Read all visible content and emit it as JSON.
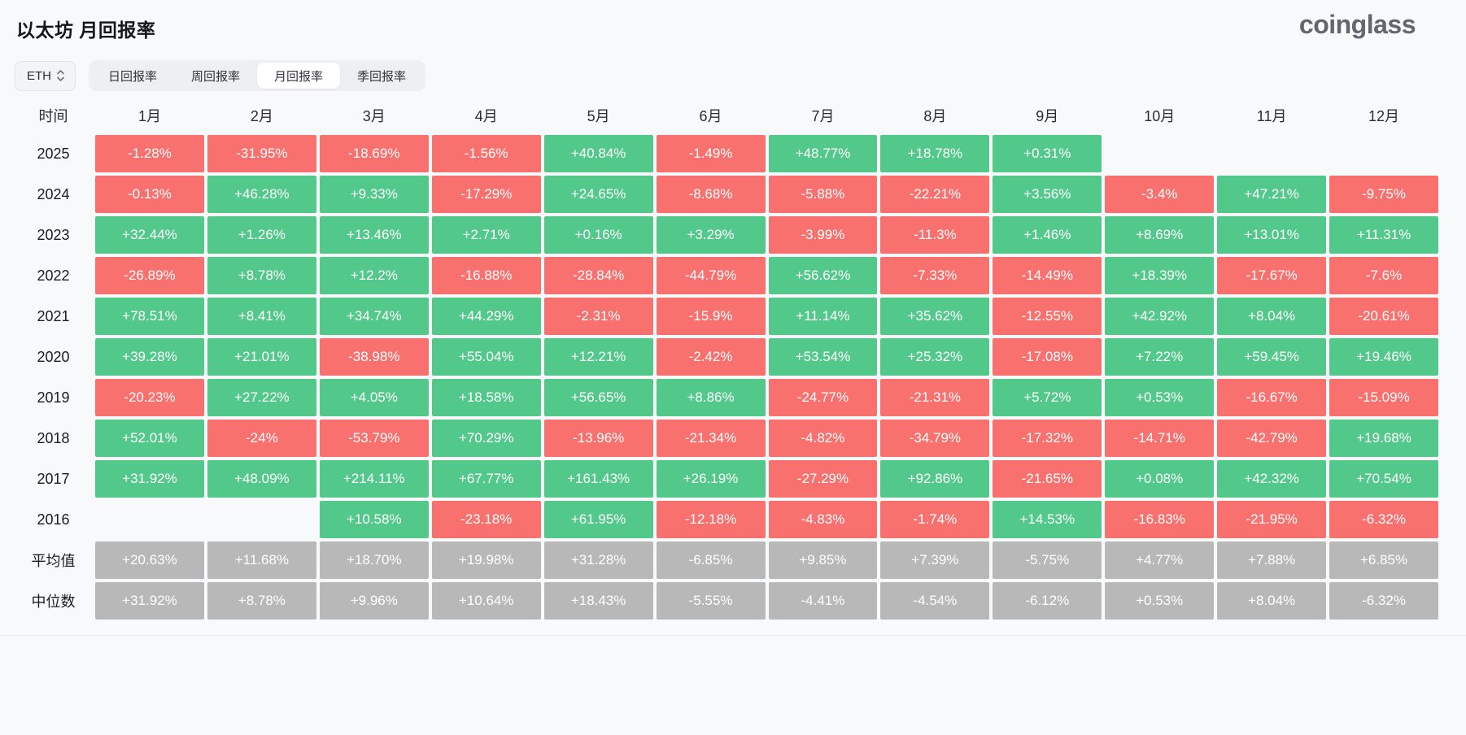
{
  "header": {
    "title": "以太坊 月回报率",
    "logo": "coinglass"
  },
  "controls": {
    "coin_select": {
      "value": "ETH"
    },
    "tabs": [
      {
        "name": "tab-daily-returns",
        "label": "日回报率",
        "active": false
      },
      {
        "name": "tab-weekly-returns",
        "label": "周回报率",
        "active": false
      },
      {
        "name": "tab-monthly-returns",
        "label": "月回报率",
        "active": true
      },
      {
        "name": "tab-quarterly-returns",
        "label": "季回报率",
        "active": false
      }
    ]
  },
  "colors": {
    "positive": "#52c98b",
    "negative": "#f8716e",
    "neutral": "#b8b8b8"
  },
  "chart_data": {
    "type": "heatmap",
    "title": "以太坊 月回报率",
    "unit": "%",
    "columns": [
      "时间",
      "1月",
      "2月",
      "3月",
      "4月",
      "5月",
      "6月",
      "7月",
      "8月",
      "9月",
      "10月",
      "11月",
      "12月"
    ],
    "rows": [
      {
        "label": "2025",
        "values": [
          "-1.28%",
          "-31.95%",
          "-18.69%",
          "-1.56%",
          "+40.84%",
          "-1.49%",
          "+48.77%",
          "+18.78%",
          "+0.31%",
          "",
          "",
          ""
        ]
      },
      {
        "label": "2024",
        "values": [
          "-0.13%",
          "+46.28%",
          "+9.33%",
          "-17.29%",
          "+24.65%",
          "-8.68%",
          "-5.88%",
          "-22.21%",
          "+3.56%",
          "-3.4%",
          "+47.21%",
          "-9.75%"
        ]
      },
      {
        "label": "2023",
        "values": [
          "+32.44%",
          "+1.26%",
          "+13.46%",
          "+2.71%",
          "+0.16%",
          "+3.29%",
          "-3.99%",
          "-11.3%",
          "+1.46%",
          "+8.69%",
          "+13.01%",
          "+11.31%"
        ]
      },
      {
        "label": "2022",
        "values": [
          "-26.89%",
          "+8.78%",
          "+12.2%",
          "-16.88%",
          "-28.84%",
          "-44.79%",
          "+56.62%",
          "-7.33%",
          "-14.49%",
          "+18.39%",
          "-17.67%",
          "-7.6%"
        ]
      },
      {
        "label": "2021",
        "values": [
          "+78.51%",
          "+8.41%",
          "+34.74%",
          "+44.29%",
          "-2.31%",
          "-15.9%",
          "+11.14%",
          "+35.62%",
          "-12.55%",
          "+42.92%",
          "+8.04%",
          "-20.61%"
        ]
      },
      {
        "label": "2020",
        "values": [
          "+39.28%",
          "+21.01%",
          "-38.98%",
          "+55.04%",
          "+12.21%",
          "-2.42%",
          "+53.54%",
          "+25.32%",
          "-17.08%",
          "+7.22%",
          "+59.45%",
          "+19.46%"
        ]
      },
      {
        "label": "2019",
        "values": [
          "-20.23%",
          "+27.22%",
          "+4.05%",
          "+18.58%",
          "+56.65%",
          "+8.86%",
          "-24.77%",
          "-21.31%",
          "+5.72%",
          "+0.53%",
          "-16.67%",
          "-15.09%"
        ]
      },
      {
        "label": "2018",
        "values": [
          "+52.01%",
          "-24%",
          "-53.79%",
          "+70.29%",
          "-13.96%",
          "-21.34%",
          "-4.82%",
          "-34.79%",
          "-17.32%",
          "-14.71%",
          "-42.79%",
          "+19.68%"
        ]
      },
      {
        "label": "2017",
        "values": [
          "+31.92%",
          "+48.09%",
          "+214.11%",
          "+67.77%",
          "+161.43%",
          "+26.19%",
          "-27.29%",
          "+92.86%",
          "-21.65%",
          "+0.08%",
          "+42.32%",
          "+70.54%"
        ]
      },
      {
        "label": "2016",
        "values": [
          "",
          "",
          "+10.58%",
          "-23.18%",
          "+61.95%",
          "-12.18%",
          "-4.83%",
          "-1.74%",
          "+14.53%",
          "-16.83%",
          "-21.95%",
          "-6.32%"
        ]
      },
      {
        "label": "平均值",
        "style": "neutral",
        "values": [
          "+20.63%",
          "+11.68%",
          "+18.70%",
          "+19.98%",
          "+31.28%",
          "-6.85%",
          "+9.85%",
          "+7.39%",
          "-5.75%",
          "+4.77%",
          "+7.88%",
          "+6.85%"
        ]
      },
      {
        "label": "中位数",
        "style": "neutral",
        "values": [
          "+31.92%",
          "+8.78%",
          "+9.96%",
          "+10.64%",
          "+18.43%",
          "-5.55%",
          "-4.41%",
          "-4.54%",
          "-6.12%",
          "+0.53%",
          "+8.04%",
          "-6.32%"
        ]
      }
    ]
  }
}
